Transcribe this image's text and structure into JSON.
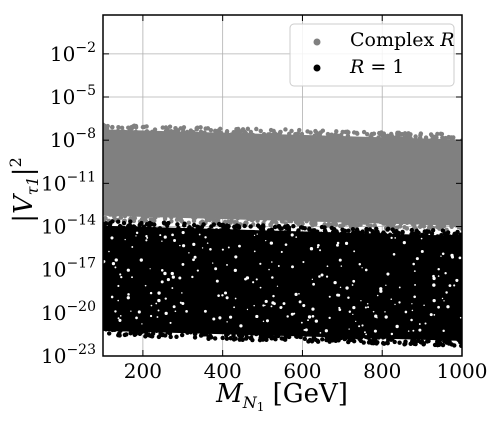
{
  "chart_data": {
    "type": "scatter",
    "xlabel": "M_N1 [GeV]",
    "ylabel": "|V_τ1|^2",
    "xlabel_parts": {
      "main": "M",
      "sub": "N",
      "subsub": "1",
      "unit": " [GeV]"
    },
    "ylabel_parts": {
      "main": "|V",
      "sub": "τ1",
      "close": "|",
      "sup": "2"
    },
    "xlim": [
      100,
      1000
    ],
    "ylim_log10": [
      -23,
      0.7
    ],
    "y_scale": "log",
    "grid": true,
    "legend_position": "top-right",
    "x_ticks": [
      {
        "value": 200,
        "label": "200"
      },
      {
        "value": 400,
        "label": "400"
      },
      {
        "value": 600,
        "label": "600"
      },
      {
        "value": 800,
        "label": "800"
      },
      {
        "value": 1000,
        "label": "1000"
      }
    ],
    "y_ticks": [
      {
        "exp": -2,
        "base": "10",
        "sup": "−2"
      },
      {
        "exp": -5,
        "base": "10",
        "sup": "−5"
      },
      {
        "exp": -8,
        "base": "10",
        "sup": "−8"
      },
      {
        "exp": -11,
        "base": "10",
        "sup": "−11"
      },
      {
        "exp": -14,
        "base": "10",
        "sup": "−14"
      },
      {
        "exp": -17,
        "base": "10",
        "sup": "−17"
      },
      {
        "exp": -20,
        "base": "10",
        "sup": "−20"
      },
      {
        "exp": -23,
        "base": "10",
        "sup": "−23"
      }
    ],
    "series": [
      {
        "name": "Complex R",
        "name_parts": {
          "text": "Complex ",
          "var": "R"
        },
        "color": "#808080",
        "band_log10": {
          "x": [
            100,
            1000
          ],
          "upper": [
            -6.9,
            -7.6
          ],
          "lower": [
            -13.6,
            -14.3
          ]
        }
      },
      {
        "name": "R = 1",
        "name_parts": {
          "var": "R",
          "text": " = 1"
        },
        "color": "#000000",
        "band_log10": {
          "x": [
            100,
            1000
          ],
          "upper": [
            -13.6,
            -14.3
          ],
          "lower": [
            -21.6,
            -22.3
          ]
        }
      }
    ]
  }
}
